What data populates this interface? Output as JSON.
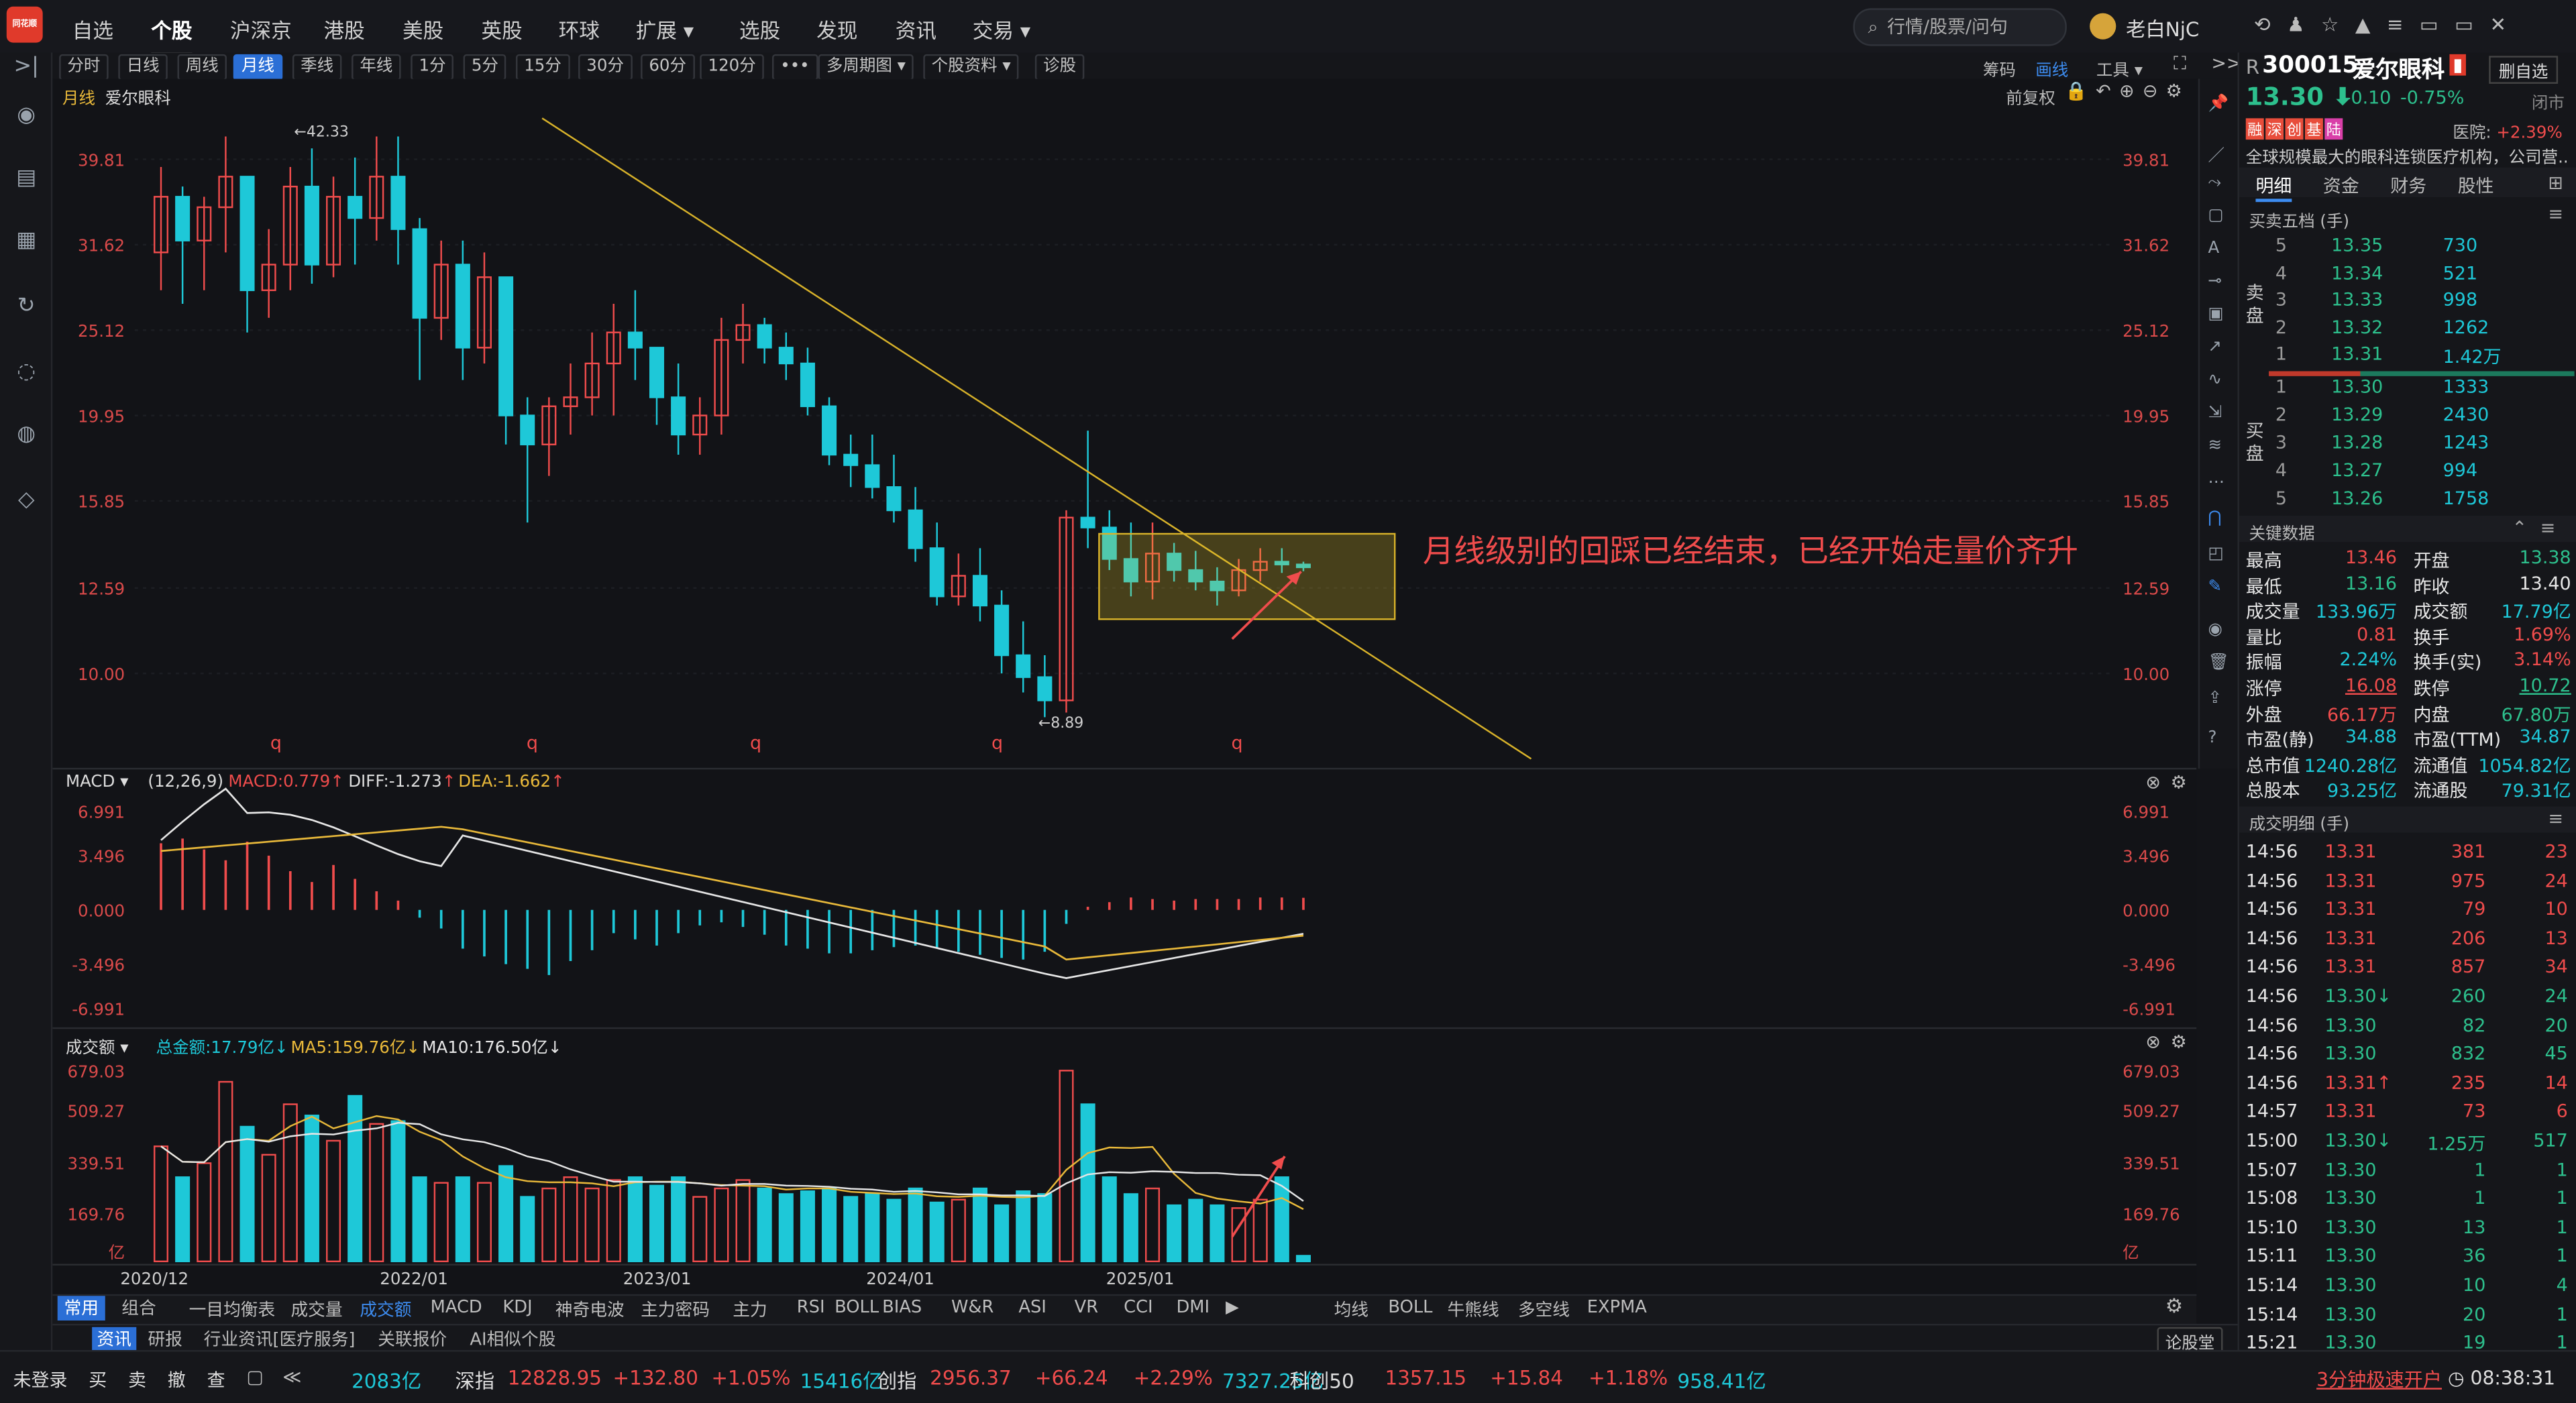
{
  "nav": {
    "logo": "同花顺",
    "items": [
      "自选",
      "个股",
      "沪深京",
      "港股",
      "美股",
      "英股",
      "环球",
      "扩展 ▾",
      "选股",
      "发现",
      "资讯",
      "交易 ▾"
    ],
    "search_placeholder": "行情/股票/问句",
    "user": "老白NjC"
  },
  "periods": [
    "分时",
    "日线",
    "周线",
    "月线",
    "季线",
    "年线",
    "1分",
    "5分",
    "15分",
    "30分",
    "60分",
    "120分",
    "•••",
    "多周期图 ▾",
    "个股资料 ▾",
    "诊股"
  ],
  "active_period": "月线",
  "chart_tools": {
    "chip": "筹码",
    "draw": "画线",
    "tools": "工具 ▾"
  },
  "main_chart": {
    "label": "月线",
    "name": "爱尔眼科",
    "fq": "前复权",
    "y_ticks": [
      "39.81",
      "31.62",
      "25.12",
      "19.95",
      "15.85",
      "12.59",
      "10.00"
    ],
    "high_mark": "←42.33",
    "low_mark": "←8.89",
    "q_marks": [
      "q",
      "q",
      "q",
      "q",
      "q"
    ],
    "annotation": "月线级别的回踩已经结束，已经开始走量价齐升"
  },
  "macd": {
    "title": "MACD",
    "params": "(12,26,9)",
    "macd": "MACD:0.779",
    "diff": "DIFF:-1.273",
    "dea": "DEA:-1.662",
    "y_ticks": [
      "6.991",
      "3.496",
      "0.000",
      "-3.496",
      "-6.991"
    ]
  },
  "volume": {
    "title": "成交额",
    "total": "总金额:17.79亿",
    "ma5": "MA5:159.76亿",
    "ma10": "MA10:176.50亿",
    "y_ticks": [
      "679.03",
      "509.27",
      "339.51",
      "169.76",
      "亿"
    ],
    "x_labels": [
      "2020/12",
      "2022/01",
      "2023/01",
      "2024/01",
      "2025/01"
    ]
  },
  "indicator_tabs": {
    "groups": [
      "常用",
      "组合"
    ],
    "items": [
      "一目均衡表",
      "成交量",
      "成交额",
      "MACD",
      "KDJ",
      "神奇电波",
      "主力密码",
      "主力",
      "RSI",
      "BOLL",
      "BIAS",
      "W&R",
      "ASI",
      "VR",
      "CCI",
      "DMI"
    ],
    "items2": [
      "均线",
      "BOLL",
      "牛熊线",
      "多空线",
      "EXPMA"
    ]
  },
  "bottom_tabs": [
    "资讯",
    "研报",
    "行业资讯[医疗服务]",
    "关联报价",
    "AI相似个股"
  ],
  "bottom_tab_right": "论股堂",
  "stock": {
    "code": "300015",
    "name": "爱尔眼科",
    "price": "13.30",
    "change": "-0.10",
    "pct": "-0.75%",
    "status": "闭市",
    "tags": [
      "融",
      "深",
      "创",
      "基",
      "陆"
    ],
    "sector": "医院: +2.39%",
    "desc": "全球规模最大的眼科连锁医疗机构，公司营...",
    "tabs": [
      "明细",
      "资金",
      "财务",
      "股性"
    ],
    "add_fav": "删自选"
  },
  "orderbook": {
    "title": "买卖五档 (手)",
    "sell": [
      [
        "5",
        "13.35",
        "730"
      ],
      [
        "4",
        "13.34",
        "521"
      ],
      [
        "3",
        "13.33",
        "998"
      ],
      [
        "2",
        "13.32",
        "1262"
      ],
      [
        "1",
        "13.31",
        "1.42万"
      ]
    ],
    "buy": [
      [
        "1",
        "13.30",
        "1333"
      ],
      [
        "2",
        "13.29",
        "2430"
      ],
      [
        "3",
        "13.28",
        "1243"
      ],
      [
        "4",
        "13.27",
        "994"
      ],
      [
        "5",
        "13.26",
        "1758"
      ]
    ],
    "sell_label": "卖盘",
    "buy_label": "买盘"
  },
  "keydata": {
    "title": "关键数据",
    "rows": [
      [
        "最高",
        "13.46",
        "开盘",
        "13.38"
      ],
      [
        "最低",
        "13.16",
        "昨收",
        "13.40"
      ],
      [
        "成交量",
        "133.96万",
        "成交额",
        "17.79亿"
      ],
      [
        "量比",
        "0.81",
        "换手",
        "1.69%"
      ],
      [
        "振幅",
        "2.24%",
        "换手(实)",
        "3.14%"
      ],
      [
        "涨停",
        "16.08",
        "跌停",
        "10.72"
      ],
      [
        "外盘",
        "66.17万",
        "内盘",
        "67.80万"
      ],
      [
        "市盈(静)",
        "34.88",
        "市盈(TTM)",
        "34.87"
      ],
      [
        "总市值",
        "1240.28亿",
        "流通值",
        "1054.82亿"
      ],
      [
        "总股本",
        "93.25亿",
        "流通股",
        "79.31亿"
      ]
    ]
  },
  "trades": {
    "title": "成交明细 (手)",
    "rows": [
      [
        "14:56",
        "13.31",
        "381",
        "23"
      ],
      [
        "14:56",
        "13.31",
        "975",
        "24"
      ],
      [
        "14:56",
        "13.31",
        "79",
        "10"
      ],
      [
        "14:56",
        "13.31",
        "206",
        "13"
      ],
      [
        "14:56",
        "13.31",
        "857",
        "34"
      ],
      [
        "14:56",
        "13.30↓",
        "260",
        "24"
      ],
      [
        "14:56",
        "13.30",
        "82",
        "20"
      ],
      [
        "14:56",
        "13.30",
        "832",
        "45"
      ],
      [
        "14:56",
        "13.31↑",
        "235",
        "14"
      ],
      [
        "14:57",
        "13.31",
        "73",
        "6"
      ],
      [
        "15:00",
        "13.30↓",
        "1.25万",
        "517"
      ],
      [
        "15:07",
        "13.30",
        "1",
        "1"
      ],
      [
        "15:08",
        "13.30",
        "1",
        "1"
      ],
      [
        "15:10",
        "13.30",
        "13",
        "1"
      ],
      [
        "15:11",
        "13.30",
        "36",
        "1"
      ],
      [
        "15:14",
        "13.30",
        "10",
        "4"
      ],
      [
        "15:14",
        "13.30",
        "20",
        "1"
      ],
      [
        "15:21",
        "13.30",
        "19",
        "1"
      ]
    ]
  },
  "statusbar": {
    "login": "未登录",
    "actions": [
      "买",
      "卖",
      "撤",
      "查"
    ],
    "fragment": "2083亿",
    "indices": [
      {
        "name": "深指",
        "val": "12828.95",
        "chg": "+132.80",
        "pct": "+1.05%",
        "amt": "15416亿"
      },
      {
        "name": "创指",
        "val": "2956.37",
        "chg": "+66.24",
        "pct": "+2.29%",
        "amt": "7327.25亿"
      },
      {
        "name": "科创50",
        "val": "1357.15",
        "chg": "+15.84",
        "pct": "+1.18%",
        "amt": "958.41亿"
      }
    ],
    "promo": "3分钟极速开户",
    "time": "08:38:31"
  },
  "colors": {
    "up": "#ef4c4c",
    "down": "#1ec8d8",
    "ma_white": "#e6e6e6",
    "ma_yellow": "#e9b93a",
    "accent": "#2b6fd6"
  }
}
